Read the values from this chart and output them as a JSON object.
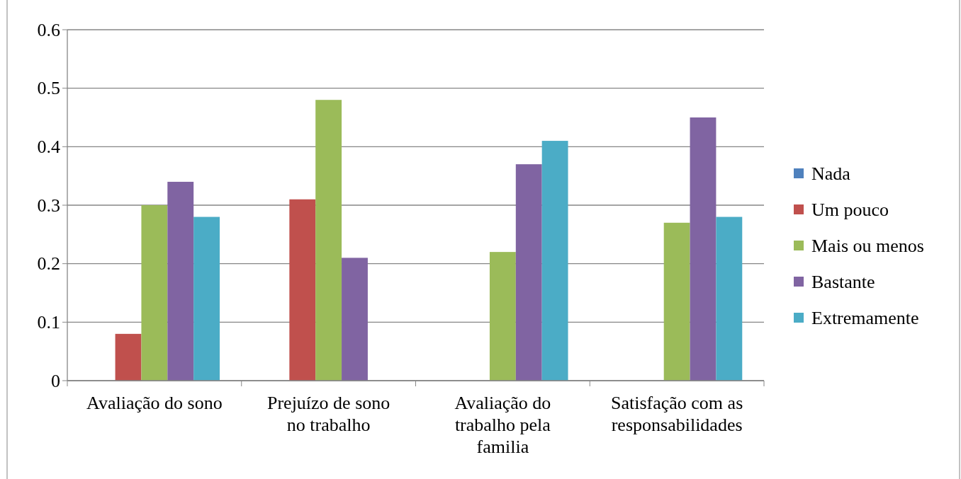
{
  "chart_data": {
    "type": "bar",
    "categories": [
      "Avaliação do sono",
      "Prejuízo de sono no trabalho",
      "Avaliação do trabalho pela familia",
      "Satisfação com as responsabilidades"
    ],
    "series": [
      {
        "name": "Nada",
        "color": "#4f81bd",
        "values": [
          0,
          0,
          0,
          0
        ]
      },
      {
        "name": "Um pouco",
        "color": "#c0504d",
        "values": [
          0.08,
          0.31,
          0,
          0
        ]
      },
      {
        "name": "Mais ou menos",
        "color": "#9bbb59",
        "values": [
          0.3,
          0.48,
          0.22,
          0.27
        ]
      },
      {
        "name": "Bastante",
        "color": "#8064a2",
        "values": [
          0.34,
          0.21,
          0.37,
          0.45
        ]
      },
      {
        "name": "Extremamente",
        "color": "#4bacc6",
        "values": [
          0.28,
          0,
          0.41,
          0.28
        ]
      }
    ],
    "ylim": [
      0,
      0.6
    ],
    "yticks": [
      0,
      0.1,
      0.2,
      0.3,
      0.4,
      0.5,
      0.6
    ],
    "grid": "y",
    "legend": "right"
  }
}
